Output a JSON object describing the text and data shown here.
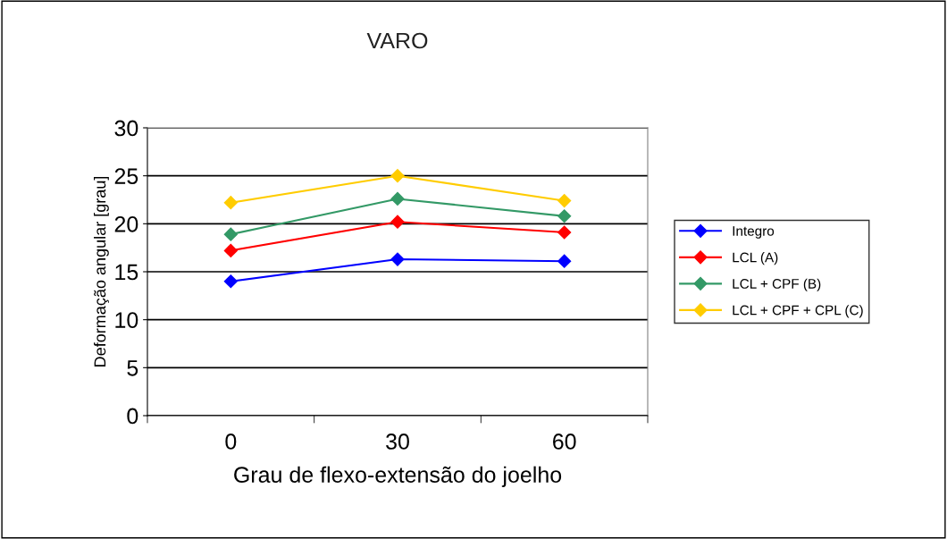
{
  "chart_data": {
    "type": "line",
    "title": "VARO",
    "xlabel": "Grau de flexo-extensão do joelho",
    "ylabel": "Deformação angular [grau]",
    "categories": [
      "0",
      "30",
      "60"
    ],
    "series": [
      {
        "name": "Integro",
        "color": "#0000ff",
        "values": [
          14.0,
          16.3,
          16.1
        ]
      },
      {
        "name": "LCL (A)",
        "color": "#ff0000",
        "values": [
          17.2,
          20.2,
          19.1
        ]
      },
      {
        "name": "LCL + CPF (B)",
        "color": "#339966",
        "values": [
          18.9,
          22.6,
          20.8
        ]
      },
      {
        "name": "LCL + CPF + CPL (C)",
        "color": "#ffcc00",
        "values": [
          22.2,
          25.0,
          22.4
        ]
      }
    ],
    "ylim": [
      0,
      30
    ],
    "yticks": [
      0,
      5,
      10,
      15,
      20,
      25,
      30
    ],
    "grid": "y",
    "legend": "right",
    "marker": "diamond"
  }
}
